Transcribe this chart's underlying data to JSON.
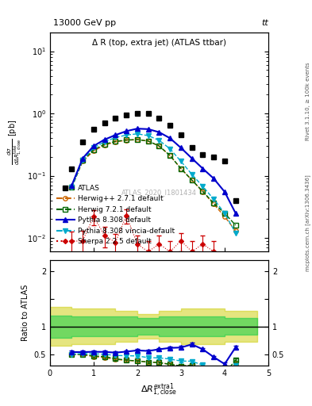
{
  "title_top": "13000 GeV pp",
  "title_top_right": "tt",
  "plot_title": "Δ R (top, extra jet) (ATLAS ttbar)",
  "ylabel_ratio": "Ratio to ATLAS",
  "right_label": "Rivet 3.1.10, ≥ 100k events",
  "right_label2": "mcplots.cern.ch [arXiv:1306.3436]",
  "watermark": "ATLAS_2020_I1801434",
  "xlim": [
    0,
    5.0
  ],
  "ylim_main": [
    0.006,
    20
  ],
  "ylim_ratio": [
    0.3,
    2.2
  ],
  "atlas_x": [
    0.5,
    0.75,
    1.0,
    1.25,
    1.5,
    1.75,
    2.0,
    2.25,
    2.5,
    2.75,
    3.0,
    3.25,
    3.5,
    3.75,
    4.0,
    4.25
  ],
  "atlas_y": [
    0.13,
    0.35,
    0.55,
    0.7,
    0.85,
    0.95,
    1.0,
    1.0,
    0.85,
    0.65,
    0.45,
    0.28,
    0.22,
    0.2,
    0.17,
    0.04
  ],
  "herwig271_x": [
    0.5,
    0.75,
    1.0,
    1.25,
    1.5,
    1.75,
    2.0,
    2.25,
    2.5,
    2.75,
    3.0,
    3.25,
    3.5,
    3.75,
    4.0,
    4.25
  ],
  "herwig271_y": [
    0.065,
    0.17,
    0.25,
    0.31,
    0.35,
    0.37,
    0.38,
    0.36,
    0.3,
    0.21,
    0.13,
    0.085,
    0.055,
    0.035,
    0.022,
    0.013
  ],
  "herwig721_x": [
    0.5,
    0.75,
    1.0,
    1.25,
    1.5,
    1.75,
    2.0,
    2.25,
    2.5,
    2.75,
    3.0,
    3.25,
    3.5,
    3.75,
    4.0,
    4.25
  ],
  "herwig721_y": [
    0.065,
    0.175,
    0.26,
    0.32,
    0.355,
    0.375,
    0.38,
    0.36,
    0.3,
    0.21,
    0.13,
    0.085,
    0.056,
    0.036,
    0.025,
    0.016
  ],
  "pythia308_x": [
    0.5,
    0.75,
    1.0,
    1.25,
    1.5,
    1.75,
    2.0,
    2.25,
    2.5,
    2.75,
    3.0,
    3.25,
    3.5,
    3.75,
    4.0,
    4.25
  ],
  "pythia308_y": [
    0.07,
    0.19,
    0.3,
    0.38,
    0.45,
    0.52,
    0.57,
    0.56,
    0.5,
    0.4,
    0.28,
    0.19,
    0.13,
    0.09,
    0.055,
    0.025
  ],
  "pythia308v_x": [
    0.5,
    0.75,
    1.0,
    1.25,
    1.5,
    1.75,
    2.0,
    2.25,
    2.5,
    2.75,
    3.0,
    3.25,
    3.5,
    3.75,
    4.0,
    4.25
  ],
  "pythia308v_y": [
    0.065,
    0.18,
    0.28,
    0.35,
    0.41,
    0.45,
    0.47,
    0.44,
    0.37,
    0.27,
    0.17,
    0.105,
    0.067,
    0.042,
    0.025,
    0.012
  ],
  "sherpa225_x": [
    0.5,
    0.75,
    1.0,
    1.25,
    1.5,
    1.75,
    2.0,
    2.25,
    2.5,
    2.75,
    3.0,
    3.25,
    3.5,
    3.75
  ],
  "sherpa225_y": [
    0.0088,
    0.009,
    0.022,
    0.011,
    0.0085,
    0.023,
    0.008,
    0.006,
    0.008,
    0.006,
    0.009,
    0.006,
    0.008,
    0.006
  ],
  "sherpa225_yerr": [
    0.004,
    0.004,
    0.006,
    0.004,
    0.003,
    0.006,
    0.003,
    0.003,
    0.003,
    0.003,
    0.003,
    0.003,
    0.003,
    0.003
  ],
  "ratio_herwig271_y": [
    0.5,
    0.49,
    0.46,
    0.44,
    0.41,
    0.39,
    0.38,
    0.36,
    0.35,
    0.32,
    0.29,
    0.3,
    0.25,
    0.175,
    0.13,
    0.33
  ],
  "ratio_herwig721_y": [
    0.5,
    0.5,
    0.47,
    0.46,
    0.42,
    0.395,
    0.38,
    0.36,
    0.35,
    0.32,
    0.29,
    0.3,
    0.255,
    0.18,
    0.145,
    0.4
  ],
  "ratio_pythia308_y": [
    0.54,
    0.54,
    0.545,
    0.543,
    0.53,
    0.548,
    0.57,
    0.56,
    0.59,
    0.615,
    0.622,
    0.679,
    0.59,
    0.45,
    0.324,
    0.625
  ],
  "ratio_pythia308v_y": [
    0.5,
    0.514,
    0.51,
    0.5,
    0.48,
    0.474,
    0.47,
    0.44,
    0.435,
    0.415,
    0.378,
    0.375,
    0.305,
    0.21,
    0.147,
    0.3
  ],
  "band_x_edges": [
    0.0,
    0.5,
    1.0,
    1.5,
    2.0,
    2.5,
    3.0,
    4.0,
    4.75
  ],
  "y_yellow_lo": [
    0.65,
    0.68,
    0.68,
    0.72,
    0.78,
    0.72,
    0.68,
    0.72,
    0.72
  ],
  "y_yellow_hi": [
    1.35,
    1.32,
    1.32,
    1.28,
    1.22,
    1.28,
    1.32,
    1.28,
    1.28
  ],
  "y_green_lo": [
    0.8,
    0.82,
    0.82,
    0.82,
    0.85,
    0.82,
    0.82,
    0.85,
    0.85
  ],
  "y_green_hi": [
    1.2,
    1.18,
    1.18,
    1.18,
    1.15,
    1.18,
    1.18,
    1.15,
    1.15
  ],
  "color_atlas": "#000000",
  "color_herwig271": "#cc6600",
  "color_herwig721": "#006600",
  "color_pythia308": "#0000cc",
  "color_pythia308v": "#00aacc",
  "color_sherpa": "#cc0000",
  "color_green_band": "#00cc44",
  "color_yellow_band": "#cccc00"
}
